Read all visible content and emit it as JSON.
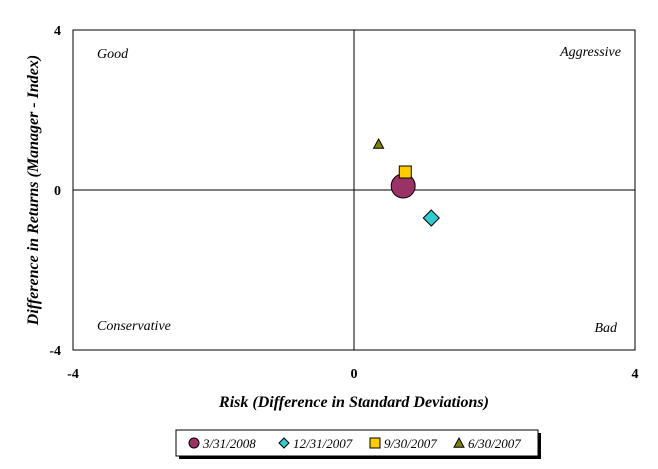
{
  "chart_data": {
    "type": "scatter",
    "title": "",
    "xlabel": "Risk (Difference in Standard Deviations)",
    "ylabel": "Difference in Returns (Manager - Index)",
    "xlim": [
      -4,
      4
    ],
    "ylim": [
      -4,
      4
    ],
    "x_ticks": [
      "-4",
      "0",
      "4"
    ],
    "y_ticks": [
      "4",
      "0",
      "-4"
    ],
    "grid": false,
    "quadrant_labels": {
      "top_left": "Good",
      "top_right": "Aggressive",
      "bottom_left": "Conservative",
      "bottom_right": "Bad"
    },
    "legend_position": "bottom",
    "series": [
      {
        "name": "3/31/2008",
        "marker": "circle",
        "color": "#993366",
        "x": 0.7,
        "y": 0.1
      },
      {
        "name": "12/31/2007",
        "marker": "diamond",
        "color": "#33CCCC",
        "x": 1.1,
        "y": -0.7
      },
      {
        "name": "9/30/2007",
        "marker": "square",
        "color": "#FFCC00",
        "x": 0.73,
        "y": 0.45
      },
      {
        "name": "6/30/2007",
        "marker": "triangle",
        "color": "#808000",
        "x": 0.35,
        "y": 1.15
      }
    ]
  }
}
